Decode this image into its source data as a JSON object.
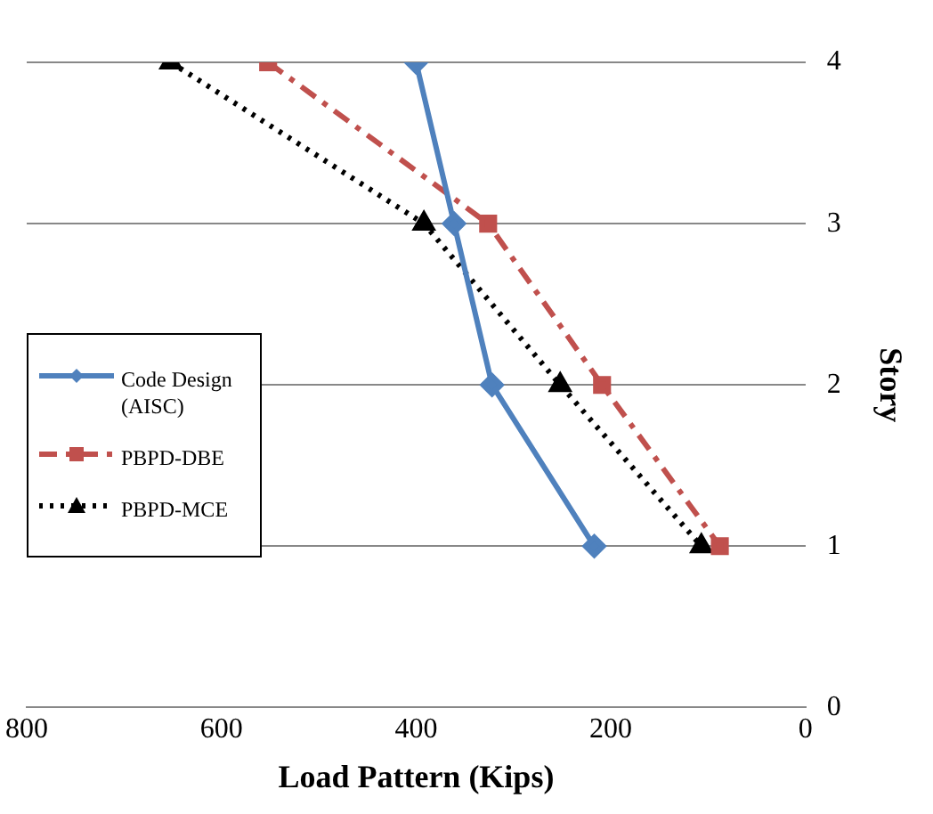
{
  "chart_data": {
    "type": "line",
    "xlabel": "Load Pattern (Kips)",
    "ylabel": "Story",
    "xlim": [
      800,
      0
    ],
    "xticks": [
      800,
      600,
      400,
      200,
      0
    ],
    "ylim": [
      0,
      4
    ],
    "yticks": [
      0,
      1,
      2,
      3,
      4
    ],
    "grid": "y",
    "legend": "left",
    "series": [
      {
        "name": "Code Design (AISC)",
        "color": "#4f81bd",
        "marker": "diamond",
        "line_style": "solid",
        "x": [
          400,
          361,
          322,
          217
        ],
        "values": [
          4,
          3,
          2,
          1
        ]
      },
      {
        "name": "PBPD-DBE",
        "color": "#c0504d",
        "marker": "square",
        "line_style": "dashed",
        "x": [
          552,
          326,
          209,
          88
        ],
        "values": [
          4,
          3,
          2,
          1
        ]
      },
      {
        "name": "PBPD-MCE",
        "color": "#000000",
        "marker": "triangle",
        "line_style": "dotted",
        "x": [
          652,
          392,
          252,
          107
        ],
        "values": [
          4,
          3,
          2,
          1
        ]
      }
    ]
  }
}
